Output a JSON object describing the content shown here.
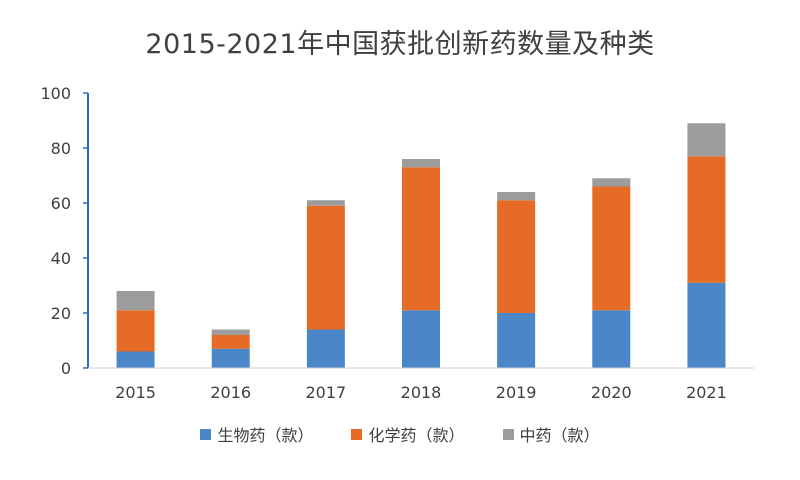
{
  "chart_data": {
    "type": "bar",
    "stacked": true,
    "title": "2015-2021年中国获批创新药数量及种类",
    "categories": [
      "2015",
      "2016",
      "2017",
      "2018",
      "2019",
      "2020",
      "2021"
    ],
    "series": [
      {
        "name": "生物药（款）",
        "color": "#4a86c8",
        "values": [
          6,
          7,
          14,
          21,
          20,
          21,
          31
        ]
      },
      {
        "name": "化学药（款）",
        "color": "#e66b26",
        "values": [
          15,
          5,
          45,
          52,
          41,
          45,
          46
        ]
      },
      {
        "name": "中药（款）",
        "color": "#9c9c9c",
        "values": [
          7,
          2,
          2,
          3,
          3,
          3,
          12
        ]
      }
    ],
    "ylim": [
      0,
      100
    ],
    "yticks": [
      0,
      20,
      40,
      60,
      80,
      100
    ],
    "ytick_labels": [
      "0",
      "20",
      "40",
      "60",
      "80",
      "100"
    ],
    "xlabel": "",
    "ylabel": "",
    "legend_position": "bottom",
    "grid": false
  }
}
